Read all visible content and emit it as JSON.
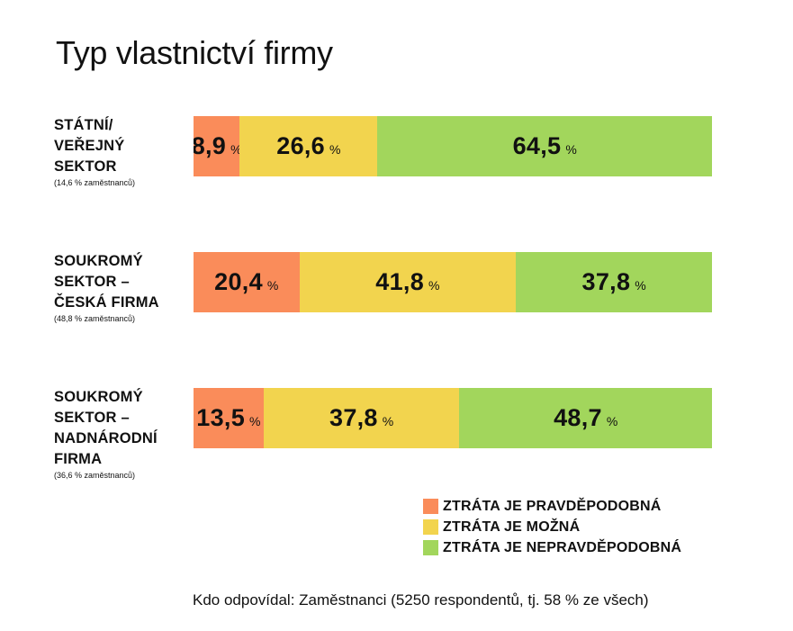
{
  "title": "Typ vlastnictví firmy",
  "source": "Kdo odpovídal: Zaměstnanci (5250 respondentů, tj. 58 % ze všech)",
  "colors": {
    "pravdepodobna": "#FA8C5A",
    "mozna": "#F2D44E",
    "nepravdepodobna": "#A2D65C"
  },
  "chart_data": {
    "type": "bar",
    "orientation": "horizontal",
    "stacked": true,
    "title": "Typ vlastnictví firmy",
    "unit": "%",
    "categories": [
      {
        "name": "STÁTNÍ/\nVEŘEJNÝ\nSEKTOR",
        "note": "(14,6 % zaměstnanců)"
      },
      {
        "name": "SOUKROMÝ\nSEKTOR –\nČESKÁ FIRMA",
        "note": "(48,8 % zaměstnanců)"
      },
      {
        "name": "SOUKROMÝ\nSEKTOR –\nNADNÁRODNÍ\n FIRMA",
        "note": "(36,6 % zaměstnanců)"
      }
    ],
    "series": [
      {
        "name": "ZTRÁTA JE PRAVDĚPODOBNÁ",
        "color": "#FA8C5A",
        "values": [
          8.9,
          20.4,
          13.5
        ],
        "labels": [
          "8,9",
          "20,4",
          "13,5"
        ]
      },
      {
        "name": "ZTRÁTA JE MOŽNÁ",
        "color": "#F2D44E",
        "values": [
          26.6,
          41.8,
          37.8
        ],
        "labels": [
          "26,6",
          "41,8",
          "37,8"
        ]
      },
      {
        "name": "ZTRÁTA JE NEPRAVDĚPODOBNÁ",
        "color": "#A2D65C",
        "values": [
          64.5,
          37.8,
          48.7
        ],
        "labels": [
          "64,5",
          "37,8",
          "48,7"
        ]
      }
    ],
    "legend_position": "bottom-right"
  }
}
